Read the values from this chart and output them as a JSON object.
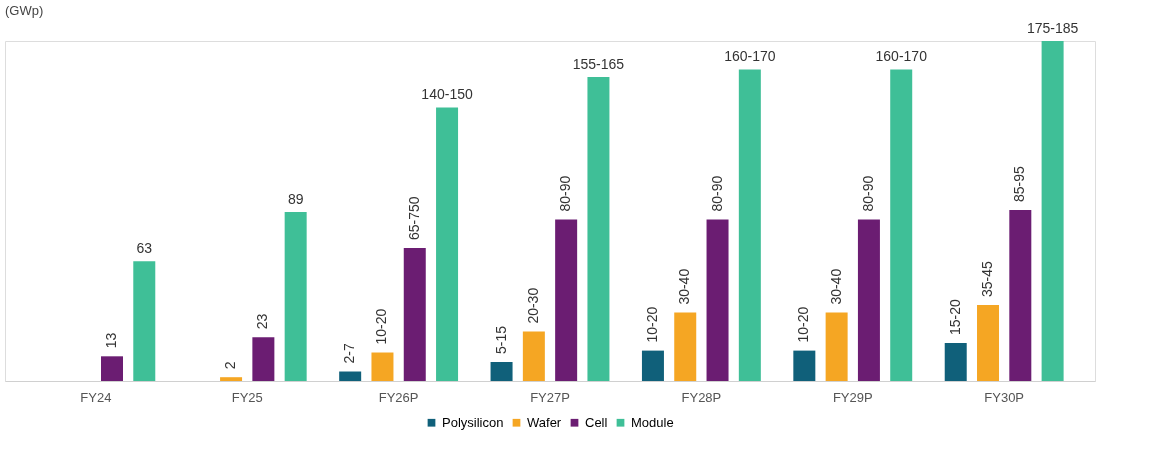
{
  "chart_data": {
    "type": "bar",
    "ylabel": "(GWp)",
    "categories": [
      "FY24",
      "FY25",
      "FY26P",
      "FY27P",
      "FY28P",
      "FY29P",
      "FY30P"
    ],
    "legend": "bottom",
    "grid": false,
    "series": [
      {
        "name": "Polysilicon",
        "color": "#10607a",
        "values": [
          null,
          null,
          5,
          10,
          16,
          16,
          20
        ],
        "value_labels": [
          null,
          null,
          "2-7",
          "5-15",
          "10-20",
          "10-20",
          "15-20"
        ]
      },
      {
        "name": "Wafer",
        "color": "#f5a623",
        "values": [
          null,
          2,
          15,
          26,
          36,
          36,
          40
        ],
        "value_labels": [
          null,
          "2",
          "10-20",
          "20-30",
          "30-40",
          "30-40",
          "35-45"
        ]
      },
      {
        "name": "Cell",
        "color": "#6b1d72",
        "values": [
          13,
          23,
          70,
          85,
          85,
          85,
          90
        ],
        "value_labels": [
          "13",
          "23",
          "65-750",
          "80-90",
          "80-90",
          "80-90",
          "85-95"
        ]
      },
      {
        "name": "Module",
        "color": "#3fbf97",
        "values": [
          63,
          89,
          144,
          160,
          164,
          164,
          179
        ],
        "value_labels": [
          "63",
          "89",
          "140-150",
          "155-165",
          "160-170",
          "160-170",
          "175-185"
        ]
      }
    ]
  }
}
